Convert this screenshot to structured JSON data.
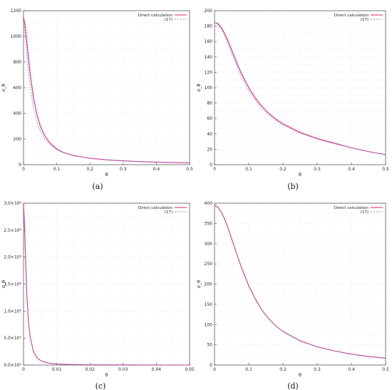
{
  "colors": {
    "direct": "#e0207a",
    "approx": "#7b93d6",
    "background": "#ffffff",
    "axis": "#444444"
  },
  "chart_data": [
    {
      "panel_label": "(a)",
      "type": "line",
      "title": "",
      "xlabel": "θ",
      "ylabel": "σ_θ",
      "xlim": [
        0,
        0.5
      ],
      "ylim": [
        0,
        1200
      ],
      "x_ticks": [
        0,
        0.1,
        0.2,
        0.3,
        0.4,
        0.5
      ],
      "x_tick_labels": [
        "0",
        "0.1",
        "0.2",
        "0.3",
        "0.4",
        "0.5"
      ],
      "y_ticks": [
        0,
        200,
        400,
        600,
        800,
        1000,
        1200
      ],
      "y_tick_labels": [
        "0",
        "200",
        "400",
        "600",
        "800",
        "1000",
        "1200"
      ],
      "grid": true,
      "legend_position": "top-right",
      "x": [
        0,
        0.005,
        0.01,
        0.015,
        0.02,
        0.03,
        0.04,
        0.05,
        0.06,
        0.07,
        0.08,
        0.1,
        0.12,
        0.15,
        0.2,
        0.25,
        0.3,
        0.35,
        0.4,
        0.45,
        0.5
      ],
      "series": [
        {
          "name": "Direct calculation",
          "style": "solid",
          "values": [
            1150,
            1080,
            960,
            830,
            710,
            520,
            395,
            305,
            245,
            200,
            168,
            122,
            95,
            72,
            50,
            38,
            30,
            24,
            20,
            17,
            14
          ]
        },
        {
          "name": "(17)",
          "style": "dashed",
          "values": [
            1120,
            1010,
            860,
            720,
            600,
            440,
            335,
            265,
            215,
            180,
            155,
            118,
            93,
            70,
            49,
            37,
            29,
            24,
            20,
            17,
            14
          ]
        }
      ]
    },
    {
      "panel_label": "(b)",
      "type": "line",
      "title": "",
      "xlabel": "θ",
      "ylabel": "σ_θ",
      "xlim": [
        0,
        0.5
      ],
      "ylim": [
        0,
        200
      ],
      "x_ticks": [
        0,
        0.1,
        0.2,
        0.3,
        0.4,
        0.5
      ],
      "x_tick_labels": [
        "0",
        "0.1",
        "0.2",
        "0.3",
        "0.4",
        "0.5"
      ],
      "y_ticks": [
        0,
        20,
        40,
        60,
        80,
        100,
        120,
        140,
        160,
        180,
        200
      ],
      "y_tick_labels": [
        "0",
        "20",
        "40",
        "60",
        "80",
        "100",
        "120",
        "140",
        "160",
        "180",
        "200"
      ],
      "grid": true,
      "legend_position": "top-right",
      "x": [
        0,
        0.01,
        0.02,
        0.03,
        0.04,
        0.05,
        0.06,
        0.07,
        0.08,
        0.1,
        0.12,
        0.14,
        0.16,
        0.18,
        0.2,
        0.25,
        0.3,
        0.35,
        0.4,
        0.45,
        0.5
      ],
      "series": [
        {
          "name": "Direct calculation",
          "style": "solid",
          "values": [
            185,
            183,
            178,
            170,
            160,
            149,
            138,
            127,
            117,
            100,
            86,
            75,
            66,
            59,
            53,
            42,
            34,
            28,
            22,
            17,
            13
          ]
        },
        {
          "name": "(17)",
          "style": "dashed",
          "values": [
            185,
            182,
            176,
            167,
            156,
            145,
            134,
            123,
            113,
            96,
            83,
            72,
            64,
            57,
            51,
            41,
            33,
            27,
            22,
            17,
            13
          ]
        }
      ]
    },
    {
      "panel_label": "(c)",
      "type": "line",
      "title": "",
      "xlabel": "θ",
      "ylabel": "σ_θ",
      "xlim": [
        0,
        0.05
      ],
      "ylim": [
        0,
        3000000
      ],
      "x_ticks": [
        0,
        0.01,
        0.02,
        0.03,
        0.04,
        0.05
      ],
      "x_tick_labels": [
        "0",
        "0.01",
        "0.02",
        "0.03",
        "0.04",
        "0.05"
      ],
      "y_ticks": [
        0,
        500000,
        1000000,
        1500000,
        2000000,
        2500000,
        3000000
      ],
      "y_tick_labels": [
        "0.0×10⁰",
        "5.0×10⁵",
        "1.0×10⁶",
        "1.5×10⁶",
        "2.0×10⁶",
        "2.5×10⁶",
        "3.0×10⁶"
      ],
      "grid": true,
      "legend_position": "top-right",
      "x": [
        0,
        0.0003,
        0.0006,
        0.001,
        0.0015,
        0.002,
        0.003,
        0.004,
        0.005,
        0.006,
        0.008,
        0.01,
        0.015,
        0.02,
        0.03,
        0.04,
        0.05
      ],
      "series": [
        {
          "name": "Direct calculation",
          "style": "solid",
          "values": [
            3000000,
            2600000,
            2000000,
            1300000,
            800000,
            520000,
            250000,
            140000,
            90000,
            60000,
            32000,
            20000,
            9000,
            5000,
            2200,
            1300,
            800
          ]
        },
        {
          "name": "(17)",
          "style": "dashed",
          "values": [
            2950000,
            2500000,
            1900000,
            1250000,
            780000,
            510000,
            245000,
            138000,
            89000,
            59000,
            32000,
            20000,
            9000,
            5000,
            2200,
            1300,
            800
          ]
        }
      ]
    },
    {
      "panel_label": "(d)",
      "type": "line",
      "title": "",
      "xlabel": "θ",
      "ylabel": "σ_θ",
      "xlim": [
        0,
        0.5
      ],
      "ylim": [
        0,
        400
      ],
      "x_ticks": [
        0,
        0.1,
        0.2,
        0.3,
        0.4,
        0.5
      ],
      "x_tick_labels": [
        "0",
        "0.1",
        "0.2",
        "0.3",
        "0.4",
        "0.5"
      ],
      "y_ticks": [
        0,
        50,
        100,
        150,
        200,
        250,
        300,
        350,
        400
      ],
      "y_tick_labels": [
        "0",
        "50",
        "100",
        "150",
        "200",
        "250",
        "300",
        "350",
        "400"
      ],
      "grid": true,
      "legend_position": "top-right",
      "x": [
        0,
        0.01,
        0.02,
        0.03,
        0.04,
        0.05,
        0.06,
        0.07,
        0.08,
        0.1,
        0.12,
        0.14,
        0.16,
        0.18,
        0.2,
        0.25,
        0.3,
        0.35,
        0.4,
        0.45,
        0.5
      ],
      "series": [
        {
          "name": "Direct calculation",
          "style": "solid",
          "values": [
            395,
            390,
            378,
            360,
            337,
            312,
            287,
            262,
            238,
            196,
            162,
            134,
            113,
            96,
            83,
            60,
            45,
            35,
            27,
            21,
            17
          ]
        },
        {
          "name": "(17)",
          "style": "dashed",
          "values": [
            394,
            389,
            377,
            359,
            336,
            311,
            286,
            261,
            237,
            195,
            161,
            134,
            113,
            96,
            83,
            60,
            45,
            35,
            27,
            21,
            17
          ]
        }
      ]
    }
  ]
}
